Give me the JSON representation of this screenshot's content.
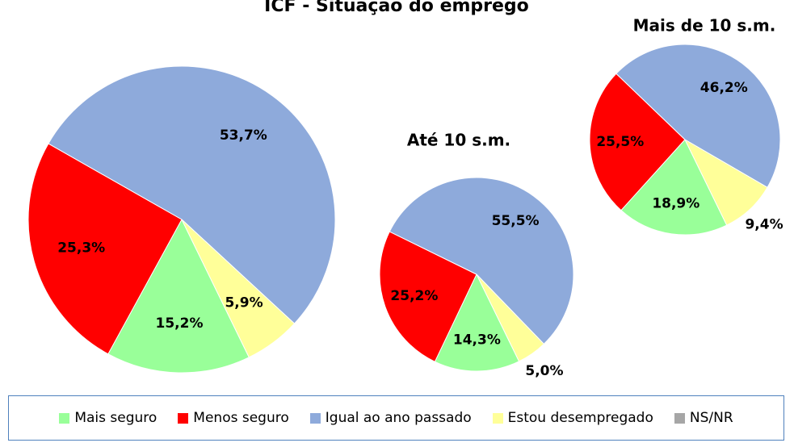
{
  "chart_data": [
    {
      "type": "pie",
      "title": "ICF - Situação do emprego",
      "categories": [
        "Mais seguro",
        "Menos seguro",
        "Igual ao ano passado",
        "Estou desempregado",
        "NS/NR"
      ],
      "colors": [
        "#99ff99",
        "#ff0000",
        "#8eaadb",
        "#ffff99",
        "#a6a6a6"
      ],
      "values": [
        15.2,
        25.3,
        53.7,
        5.9,
        null
      ],
      "value_labels": [
        "15,2%",
        "25,3%",
        "53,7%",
        "5,9%",
        null
      ]
    },
    {
      "type": "pie",
      "title": "Até 10 s.m.",
      "values": [
        14.3,
        25.2,
        55.5,
        5.0,
        null
      ],
      "value_labels": [
        "14,3%",
        "25,2%",
        "55,5%",
        "5,0%",
        null
      ]
    },
    {
      "type": "pie",
      "title": "Mais de 10 s.m.",
      "values": [
        18.9,
        25.5,
        46.2,
        9.4,
        null
      ],
      "value_labels": [
        "18,9%",
        "25,5%",
        "46,2%",
        "9,4%",
        null
      ]
    }
  ]
}
